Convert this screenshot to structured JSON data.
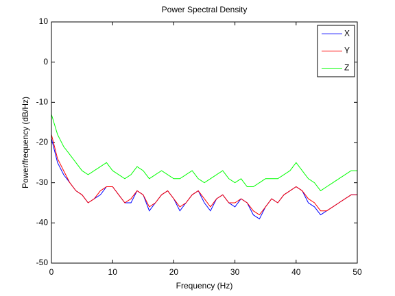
{
  "chart_data": {
    "type": "line",
    "title": "Power Spectral Density",
    "xlabel": "Frequency (Hz)",
    "ylabel": "Power/frequency (dB/Hz)",
    "x": [
      0,
      1,
      2,
      3,
      4,
      5,
      6,
      7,
      8,
      9,
      10,
      11,
      12,
      13,
      14,
      15,
      16,
      17,
      18,
      19,
      20,
      21,
      22,
      23,
      24,
      25,
      26,
      27,
      28,
      29,
      30,
      31,
      32,
      33,
      34,
      35,
      36,
      37,
      38,
      39,
      40,
      41,
      42,
      43,
      44,
      45,
      46,
      47,
      48,
      49,
      50
    ],
    "series": [
      {
        "name": "X",
        "color": "#0000ff",
        "values": [
          -19,
          -25,
          -28,
          -30,
          -32,
          -33,
          -35,
          -34,
          -33,
          -31,
          -31,
          -33,
          -35,
          -35,
          -32,
          -33,
          -37,
          -35,
          -33,
          -32,
          -34,
          -37,
          -35,
          -33,
          -32,
          -35,
          -37,
          -34,
          -33,
          -35,
          -36,
          -34,
          -35,
          -38,
          -39,
          -36,
          -34,
          -35,
          -33,
          -32,
          -31,
          -32,
          -35,
          -36,
          -38,
          -37,
          -36,
          -35,
          -34,
          -33,
          -33
        ]
      },
      {
        "name": "Y",
        "color": "#ff0000",
        "values": [
          -18,
          -24,
          -27,
          -30,
          -32,
          -33,
          -35,
          -34,
          -32,
          -31,
          -31,
          -33,
          -35,
          -34,
          -32,
          -33,
          -36,
          -35,
          -33,
          -32,
          -34,
          -36,
          -35,
          -33,
          -32,
          -34,
          -36,
          -34,
          -33,
          -35,
          -35,
          -34,
          -35,
          -37,
          -38,
          -36,
          -34,
          -35,
          -33,
          -32,
          -31,
          -32,
          -34,
          -35,
          -37,
          -37,
          -36,
          -35,
          -34,
          -33,
          -33
        ]
      },
      {
        "name": "Z",
        "color": "#00ff00",
        "values": [
          -13,
          -18,
          -21,
          -23,
          -25,
          -27,
          -28,
          -27,
          -26,
          -25,
          -27,
          -28,
          -29,
          -28,
          -26,
          -27,
          -29,
          -28,
          -27,
          -28,
          -29,
          -29,
          -28,
          -27,
          -29,
          -30,
          -29,
          -28,
          -27,
          -29,
          -30,
          -29,
          -31,
          -31,
          -30,
          -29,
          -29,
          -29,
          -28,
          -27,
          -25,
          -27,
          -29,
          -30,
          -32,
          -31,
          -30,
          -29,
          -28,
          -27,
          -27
        ]
      }
    ],
    "xlim": [
      0,
      50
    ],
    "xticks": [
      0,
      10,
      20,
      30,
      40,
      50
    ],
    "ylim": [
      -50,
      10
    ],
    "yticks": [
      -50,
      -40,
      -30,
      -20,
      -10,
      0,
      10
    ],
    "legend": "upper right"
  }
}
